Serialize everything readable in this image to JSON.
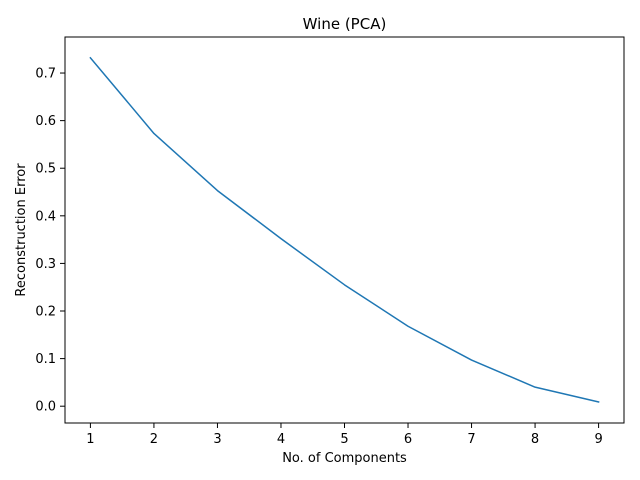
{
  "chart_data": {
    "type": "line",
    "title": "Wine (PCA)",
    "xlabel": "No. of Components",
    "ylabel": "Reconstruction Error",
    "x": [
      1,
      2,
      3,
      4,
      5,
      6,
      7,
      8,
      9
    ],
    "series": [
      {
        "values": [
          0.732,
          0.573,
          0.453,
          0.352,
          0.255,
          0.168,
          0.097,
          0.04,
          0.009
        ],
        "color": "#1f77b4"
      }
    ],
    "xticks": [
      "1",
      "2",
      "3",
      "4",
      "5",
      "6",
      "7",
      "8",
      "9"
    ],
    "yticks": [
      "0.0",
      "0.1",
      "0.2",
      "0.3",
      "0.4",
      "0.5",
      "0.6",
      "0.7"
    ],
    "xlim": [
      0.6,
      9.4
    ],
    "ylim": [
      -0.0353,
      0.7757
    ],
    "grid": false,
    "legend": "none"
  }
}
